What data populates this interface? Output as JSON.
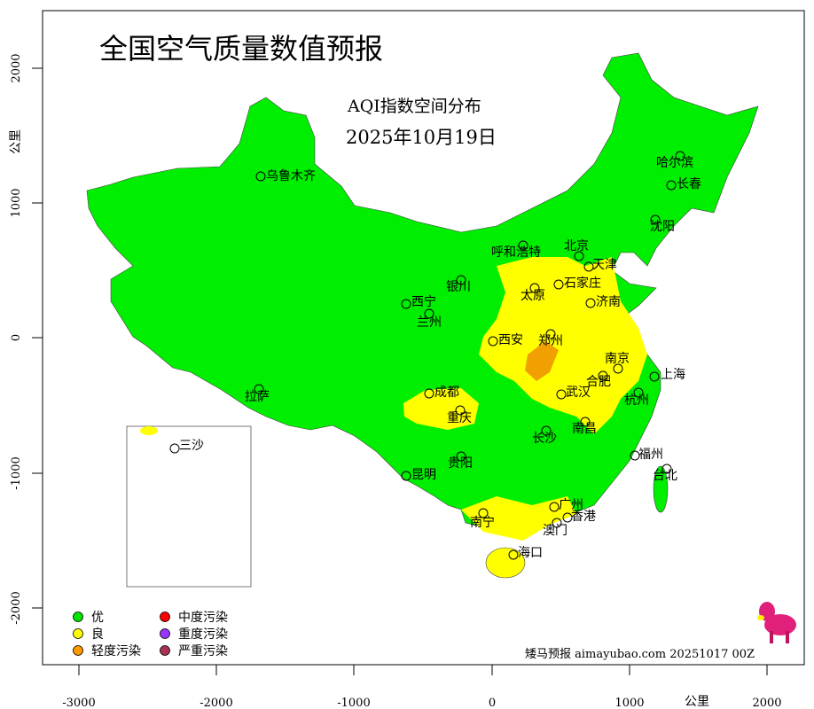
{
  "title": "全国空气质量数值预报",
  "subtitle": "AQI指数空间分布",
  "date": "2025年10月19日",
  "axes": {
    "unit": "公里",
    "x_ticks": [
      "-3000",
      "-2000",
      "-1000",
      "0",
      "1000",
      "2000"
    ],
    "y_ticks": [
      "2000",
      "1000",
      "0",
      "-1000",
      "-2000"
    ]
  },
  "legend": [
    {
      "label": "优",
      "color": "#00e400"
    },
    {
      "label": "良",
      "color": "#ffff00"
    },
    {
      "label": "轻度污染",
      "color": "#ff9900"
    },
    {
      "label": "中度污染",
      "color": "#ff0000"
    },
    {
      "label": "重度污染",
      "color": "#9933ff"
    },
    {
      "label": "严重污染",
      "color": "#aa3355"
    }
  ],
  "cities": [
    "乌鲁木齐",
    "哈尔滨",
    "长春",
    "沈阳",
    "呼和浩特",
    "北京",
    "天津",
    "石家庄",
    "银川",
    "太原",
    "济南",
    "西宁",
    "兰州",
    "西安",
    "郑州",
    "南京",
    "上海",
    "合肥",
    "拉萨",
    "成都",
    "武汉",
    "杭州",
    "重庆",
    "长沙",
    "南昌",
    "贵阳",
    "福州",
    "台北",
    "昆明",
    "南宁",
    "广州",
    "香港",
    "澳门",
    "海口",
    "三沙"
  ],
  "credit": "矮马预报 aimayubao.com 20251017 00Z",
  "colors": {
    "good_green": "#00ee00",
    "moderate_yellow": "#ffff00",
    "light_orange": "#f0a000"
  }
}
